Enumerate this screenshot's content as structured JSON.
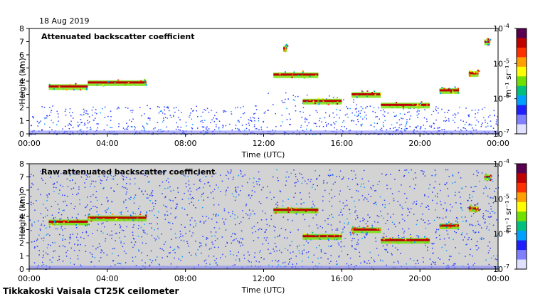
{
  "header": {
    "date": "18 Aug 2019"
  },
  "footer": {
    "station": "Tikkakoski Vaisala CT25K ceilometer"
  },
  "colorbar": {
    "unit_label": "m⁻¹ sr⁻¹",
    "tick_labels": [
      "10",
      "10",
      "10",
      "10"
    ],
    "tick_exponents": [
      "-4",
      "-5",
      "-6",
      "-7"
    ],
    "values": [
      0.0001,
      1e-05,
      1e-06,
      1e-07
    ],
    "scale": "log",
    "colors": [
      "#5a0050",
      "#c00000",
      "#ff3000",
      "#ffa000",
      "#ffff00",
      "#70e000",
      "#00c080",
      "#00a0ff",
      "#2020ff",
      "#8080ff",
      "#e0e0ff"
    ]
  },
  "colors": {
    "background_top": "#ffffff",
    "background_bottom": "#d3d3d3",
    "noise": "#2a3cff"
  },
  "chart_data": [
    {
      "type": "heatmap",
      "title": "Attenuated backscatter coefficient",
      "xlabel": "Time (UTC)",
      "ylabel": "Height (km)",
      "x_ticks": [
        "00:00",
        "04:00",
        "08:00",
        "12:00",
        "16:00",
        "20:00",
        "00:00"
      ],
      "y_ticks": [
        "0",
        "1",
        "2",
        "3",
        "4",
        "5",
        "6",
        "7",
        "8"
      ],
      "xlim": [
        0,
        24
      ],
      "ylim": [
        0,
        8
      ],
      "color_scale": "log",
      "clim": [
        1e-07,
        0.0001
      ],
      "cloud_layers": [
        {
          "t": [
            1.0,
            3.0
          ],
          "height": 3.6
        },
        {
          "t": [
            3.0,
            6.0
          ],
          "height": 3.9
        },
        {
          "t": [
            12.5,
            14.8
          ],
          "height": 4.5
        },
        {
          "t": [
            13.0,
            13.2
          ],
          "height": 6.5
        },
        {
          "t": [
            14.0,
            16.0
          ],
          "height": 2.5
        },
        {
          "t": [
            16.5,
            18.0
          ],
          "height": 3.0
        },
        {
          "t": [
            18.0,
            20.5
          ],
          "height": 2.2
        },
        {
          "t": [
            21.0,
            22.0
          ],
          "height": 3.3
        },
        {
          "t": [
            22.5,
            23.0
          ],
          "height": 4.6
        },
        {
          "t": [
            23.3,
            23.6
          ],
          "height": 7.0
        }
      ]
    },
    {
      "type": "heatmap",
      "title": "Raw attenuated backscatter coefficient",
      "xlabel": "Time (UTC)",
      "ylabel": "Height (km)",
      "x_ticks": [
        "00:00",
        "04:00",
        "08:00",
        "12:00",
        "16:00",
        "20:00",
        "00:00"
      ],
      "y_ticks": [
        "0",
        "1",
        "2",
        "3",
        "4",
        "5",
        "6",
        "7",
        "8"
      ],
      "xlim": [
        0,
        24
      ],
      "ylim": [
        0,
        8
      ],
      "color_scale": "log",
      "clim": [
        1e-07,
        0.0001
      ],
      "cloud_layers": [
        {
          "t": [
            1.0,
            3.0
          ],
          "height": 3.6
        },
        {
          "t": [
            3.0,
            6.0
          ],
          "height": 3.9
        },
        {
          "t": [
            12.5,
            14.8
          ],
          "height": 4.5
        },
        {
          "t": [
            14.0,
            16.0
          ],
          "height": 2.5
        },
        {
          "t": [
            16.5,
            18.0
          ],
          "height": 3.0
        },
        {
          "t": [
            18.0,
            20.5
          ],
          "height": 2.2
        },
        {
          "t": [
            21.0,
            22.0
          ],
          "height": 3.3
        },
        {
          "t": [
            22.5,
            23.0
          ],
          "height": 4.6
        },
        {
          "t": [
            23.3,
            23.6
          ],
          "height": 7.0
        }
      ]
    }
  ]
}
